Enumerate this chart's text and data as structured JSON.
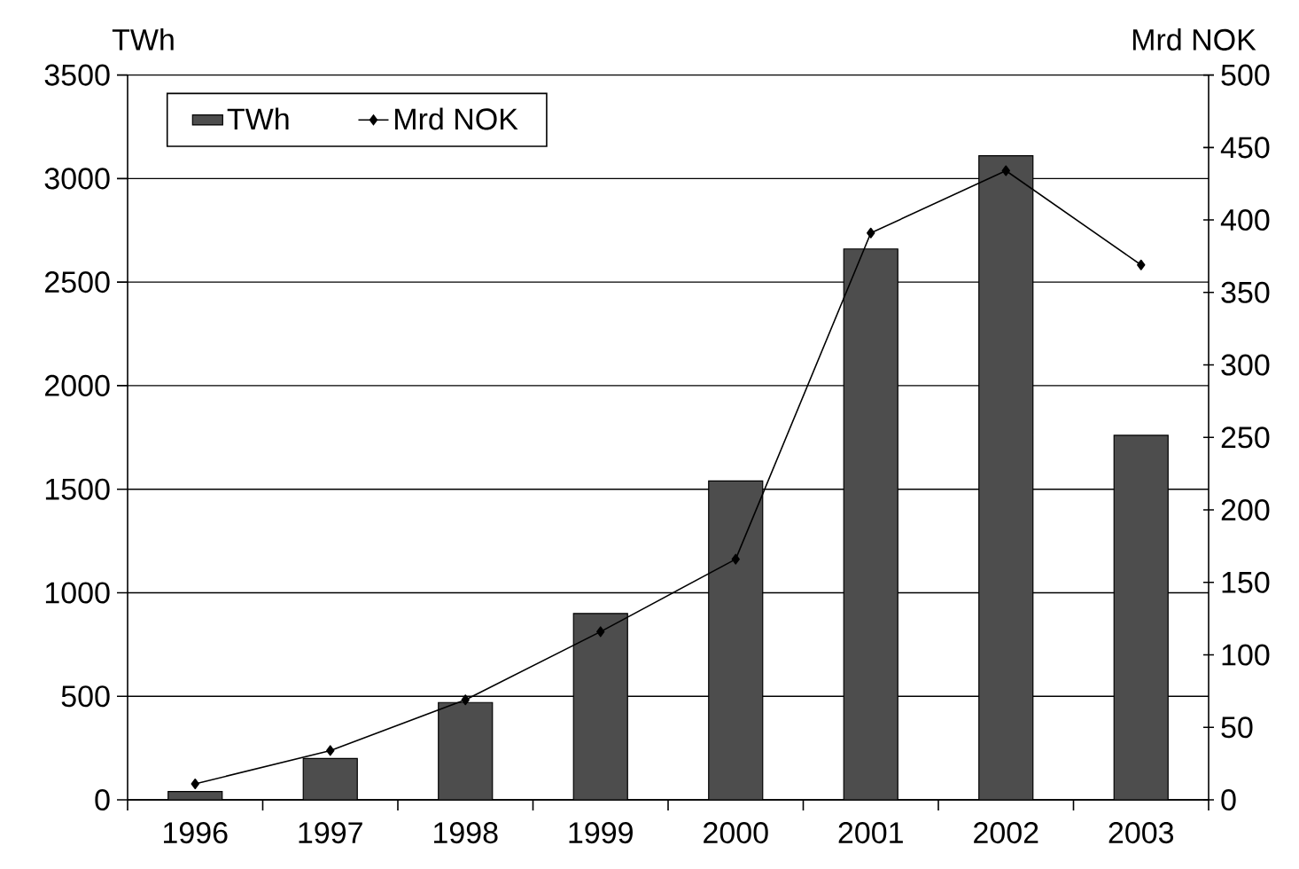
{
  "chart_data": {
    "type": "bar",
    "ylabel": "TWh",
    "y2label": "Mrd NOK",
    "categories": [
      "1996",
      "1997",
      "1998",
      "1999",
      "2000",
      "2001",
      "2002",
      "2003"
    ],
    "series": [
      {
        "name": "TWh",
        "color": "#4d4d4d",
        "values": [
          40,
          200,
          470,
          900,
          1540,
          2660,
          3110,
          1760
        ]
      },
      {
        "name": "Mrd NOK",
        "type": "line",
        "axis": "y2",
        "color": "#000000",
        "marker": "diamond",
        "values": [
          11,
          34,
          69,
          116,
          166,
          391,
          434,
          369
        ]
      }
    ],
    "ylim": [
      0,
      3500
    ],
    "yticks": [
      0,
      500,
      1000,
      1500,
      2000,
      2500,
      3000,
      3500
    ],
    "y2lim": [
      0,
      500
    ],
    "y2ticks": [
      0,
      50,
      100,
      150,
      200,
      250,
      300,
      350,
      400,
      450,
      500
    ],
    "grid": "y",
    "legend": "top left"
  }
}
